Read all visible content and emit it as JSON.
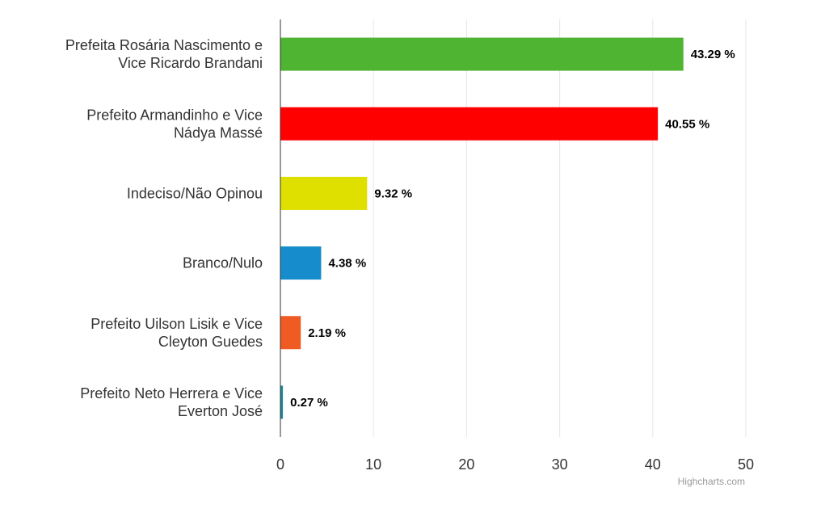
{
  "chart_data": {
    "type": "bar",
    "orientation": "horizontal",
    "categories": [
      [
        "Prefeita Rosária Nascimento e",
        "Vice Ricardo Brandani"
      ],
      [
        "Prefeito Armandinho e Vice",
        "Nádya Massé"
      ],
      [
        "Indeciso/Não Opinou"
      ],
      [
        "Branco/Nulo"
      ],
      [
        "Prefeito Uilson Lisik e Vice",
        "Cleyton Guedes"
      ],
      [
        "Prefeito Neto Herrera e Vice",
        "Everton José"
      ]
    ],
    "values": [
      43.29,
      40.55,
      9.32,
      4.38,
      2.19,
      0.27
    ],
    "data_labels": [
      "43.29 %",
      "40.55 %",
      "9.32 %",
      "4.38 %",
      "2.19 %",
      "0.27 %"
    ],
    "colors": [
      "#4fb432",
      "#ff0000",
      "#e0e000",
      "#168ccc",
      "#f05a23",
      "#1b8a9c"
    ],
    "xlim": [
      0,
      50
    ],
    "x_ticks": [
      0,
      10,
      20,
      30,
      40,
      50
    ],
    "grid": true,
    "legend": false,
    "title": "",
    "xlabel": "",
    "ylabel": ""
  },
  "credits": "Highcharts.com"
}
